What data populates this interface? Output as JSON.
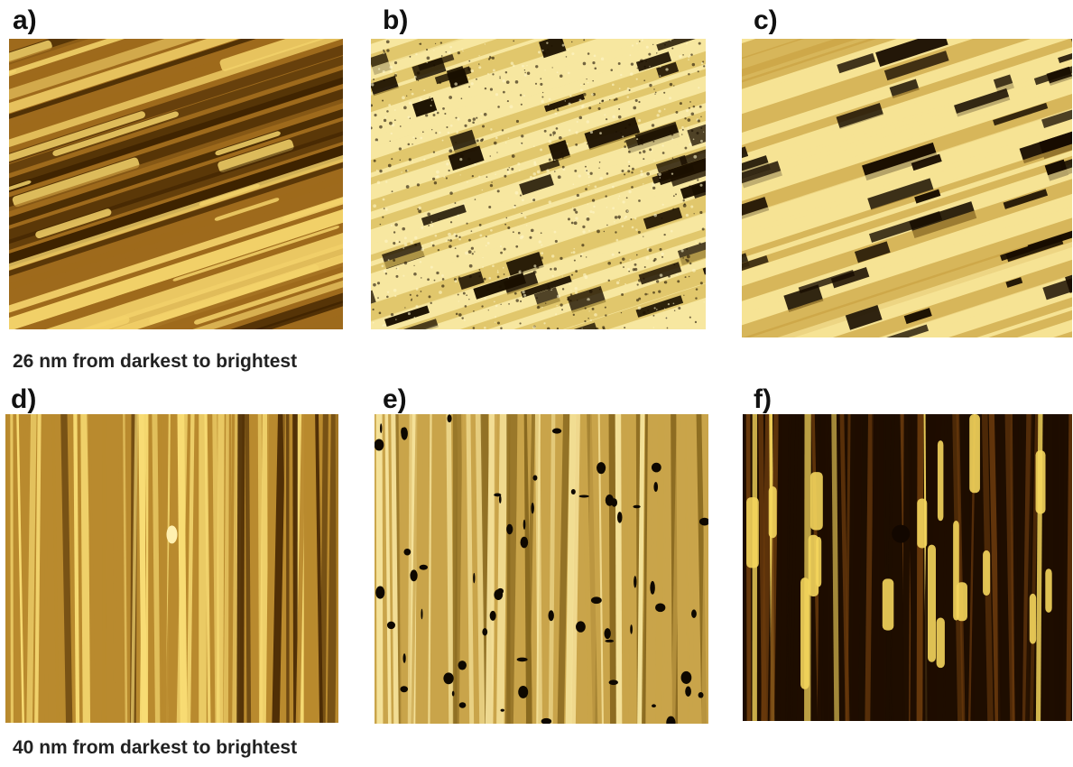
{
  "figure": {
    "panels": [
      {
        "id": "a",
        "label": "a)",
        "kind": "topography",
        "orientation": "diagonal",
        "colors": {
          "dark": "#3d2200",
          "mid": "#9e6a1c",
          "light": "#f3d26a"
        }
      },
      {
        "id": "b",
        "label": "b)",
        "kind": "phase",
        "orientation": "diagonal",
        "colors": {
          "dark": "#1a0f00",
          "mid": "#d7b956",
          "light": "#f7e7a0"
        }
      },
      {
        "id": "c",
        "label": "c)",
        "kind": "contrast",
        "orientation": "diagonal",
        "colors": {
          "dark": "#170c00",
          "mid": "#caa341",
          "light": "#f6e394"
        }
      },
      {
        "id": "d",
        "label": "d)",
        "kind": "topography",
        "orientation": "vertical",
        "colors": {
          "dark": "#4a2a04",
          "mid": "#b98a2e",
          "light": "#f8dc74"
        }
      },
      {
        "id": "e",
        "label": "e)",
        "kind": "phase",
        "orientation": "vertical",
        "colors": {
          "dark": "#0e0800",
          "mid": "#c9a44a",
          "light": "#f5e29a"
        }
      },
      {
        "id": "f",
        "label": "f)",
        "kind": "contrast",
        "orientation": "vertical",
        "colors": {
          "dark": "#1e0d00",
          "mid": "#6a3a0c",
          "light": "#f4d55c"
        }
      }
    ],
    "captions": {
      "top": "26 nm from darkest to brightest",
      "bottom": "40 nm from darkest to brightest"
    }
  }
}
